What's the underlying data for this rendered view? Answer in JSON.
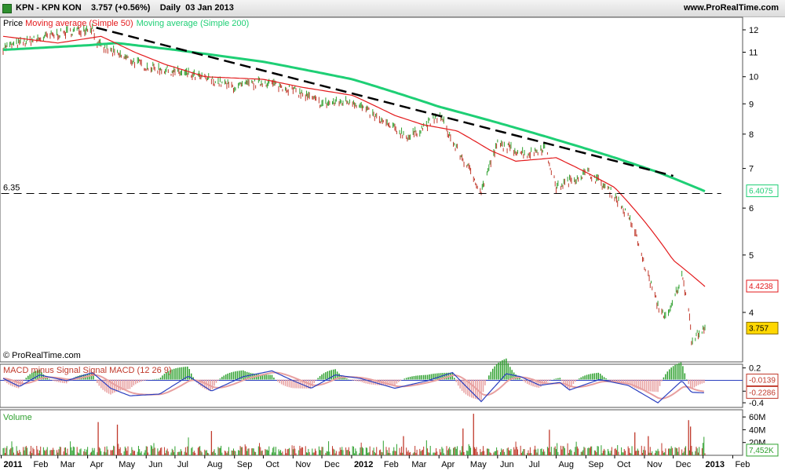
{
  "header": {
    "title": "KPN - KPN KON    3.757 (+0.56%)    Daily  03 Jan 2013",
    "site": "www.ProRealTime.com",
    "copyright": "© ProRealTime.com"
  },
  "colors": {
    "price_up": "#2ea02e",
    "price_down": "#c0392b",
    "ma50": "#e31a1c",
    "ma200": "#1ecf75",
    "trend": "#000000",
    "macd": "#2b3fbf",
    "signal": "#e8a0a0"
  },
  "chart_data": [
    {
      "type": "line",
      "panel": "price",
      "legend": [
        "Price",
        "Moving average (Simple 50)",
        "Moving average (Simple 200)"
      ],
      "x_ticks": [
        "2011",
        "Feb",
        "Mar",
        "Apr",
        "May",
        "Jun",
        "Jul",
        "Aug",
        "Sep",
        "Oct",
        "Nov",
        "Dec",
        "2012",
        "Feb",
        "Mar",
        "Apr",
        "May",
        "Jun",
        "Jul",
        "Aug",
        "Sep",
        "Oct",
        "Nov",
        "Dec",
        "2013",
        "Feb"
      ],
      "y_scale": "log",
      "y_ticks": [
        4,
        5,
        6,
        7,
        8,
        9,
        10,
        11,
        12
      ],
      "ylim": [
        3.3,
        12.6
      ],
      "price_path": [
        [
          "2011-01-03",
          11.2
        ],
        [
          "2011-02-01",
          11.5
        ],
        [
          "2011-03-01",
          11.8
        ],
        [
          "2011-04-06",
          12.1
        ],
        [
          "2011-04-12",
          11.3
        ],
        [
          "2011-05-02",
          10.9
        ],
        [
          "2011-06-01",
          10.4
        ],
        [
          "2011-07-01",
          10.2
        ],
        [
          "2011-08-05",
          9.9
        ],
        [
          "2011-09-01",
          9.6
        ],
        [
          "2011-10-03",
          9.8
        ],
        [
          "2011-11-01",
          9.5
        ],
        [
          "2011-12-01",
          9.0
        ],
        [
          "2012-01-02",
          9.1
        ],
        [
          "2012-02-01",
          8.4
        ],
        [
          "2012-03-01",
          7.9
        ],
        [
          "2012-04-02",
          8.6
        ],
        [
          "2012-04-16",
          7.7
        ],
        [
          "2012-05-15",
          6.4
        ],
        [
          "2012-06-01",
          7.7
        ],
        [
          "2012-07-02",
          7.4
        ],
        [
          "2012-07-20",
          7.6
        ],
        [
          "2012-08-01",
          6.5
        ],
        [
          "2012-09-03",
          6.9
        ],
        [
          "2012-10-01",
          6.3
        ],
        [
          "2012-10-20",
          5.6
        ],
        [
          "2012-11-01",
          4.8
        ],
        [
          "2012-11-15",
          4.1
        ],
        [
          "2012-11-25",
          3.9
        ],
        [
          "2012-12-10",
          4.6
        ],
        [
          "2012-12-17",
          4.1
        ],
        [
          "2012-12-20",
          3.6
        ],
        [
          "2013-01-03",
          3.757
        ]
      ],
      "ma50": [
        [
          "2011-01-03",
          11.7
        ],
        [
          "2011-03-01",
          11.4
        ],
        [
          "2011-04-15",
          11.7
        ],
        [
          "2011-05-20",
          11.0
        ],
        [
          "2011-06-20",
          10.5
        ],
        [
          "2011-08-01",
          10.0
        ],
        [
          "2011-10-01",
          9.9
        ],
        [
          "2011-11-10",
          9.6
        ],
        [
          "2012-01-02",
          9.3
        ],
        [
          "2012-02-15",
          8.6
        ],
        [
          "2012-03-15",
          8.3
        ],
        [
          "2012-04-20",
          8.1
        ],
        [
          "2012-05-25",
          7.5
        ],
        [
          "2012-06-20",
          7.2
        ],
        [
          "2012-08-01",
          7.3
        ],
        [
          "2012-09-01",
          6.9
        ],
        [
          "2012-10-01",
          6.5
        ],
        [
          "2012-11-01",
          5.7
        ],
        [
          "2012-12-01",
          4.9
        ],
        [
          "2013-01-03",
          4.4238
        ]
      ],
      "ma200": [
        [
          "2011-01-03",
          11.1
        ],
        [
          "2011-04-01",
          11.3
        ],
        [
          "2011-05-01",
          11.4
        ],
        [
          "2011-07-01",
          11.1
        ],
        [
          "2011-10-01",
          10.6
        ],
        [
          "2012-01-02",
          9.9
        ],
        [
          "2012-04-01",
          8.9
        ],
        [
          "2012-07-01",
          8.1
        ],
        [
          "2012-10-01",
          7.3
        ],
        [
          "2012-11-15",
          6.9
        ],
        [
          "2013-01-03",
          6.4075
        ]
      ],
      "trend_lines": [
        {
          "style": "dashed",
          "points": [
            [
              "2011-04-10",
              12.1
            ],
            [
              "2012-12-01",
              6.8
            ]
          ]
        },
        {
          "style": "dashed",
          "points": [
            [
              "2011-01-01",
              6.35
            ],
            [
              "2013-01-20",
              6.35
            ]
          ],
          "label": "6.35"
        }
      ],
      "value_tags": [
        {
          "label": "6.4075",
          "value": 6.4075,
          "color": "#1ecf75"
        },
        {
          "label": "4.4238",
          "value": 4.4238,
          "color": "#e31a1c"
        },
        {
          "label": "3.757",
          "value": 3.757,
          "color": "#e8c000"
        }
      ]
    },
    {
      "type": "line",
      "panel": "macd",
      "title": "MACD minus Signal Signal MACD (12 26 9)",
      "y_ticks": [
        0.2,
        -0.2,
        -0.4
      ],
      "ylim": [
        -0.48,
        0.25
      ],
      "macd_path": [
        [
          "2011-01-03",
          0.02
        ],
        [
          "2011-01-20",
          -0.12
        ],
        [
          "2011-02-10",
          0.08
        ],
        [
          "2011-03-10",
          -0.02
        ],
        [
          "2011-04-06",
          0.12
        ],
        [
          "2011-04-25",
          -0.15
        ],
        [
          "2011-05-15",
          -0.28
        ],
        [
          "2011-06-15",
          -0.25
        ],
        [
          "2011-07-15",
          0.06
        ],
        [
          "2011-08-08",
          -0.2
        ],
        [
          "2011-09-10",
          0.05
        ],
        [
          "2011-10-10",
          0.15
        ],
        [
          "2011-11-01",
          -0.02
        ],
        [
          "2011-11-20",
          -0.15
        ],
        [
          "2011-12-15",
          0.08
        ],
        [
          "2012-01-10",
          0.02
        ],
        [
          "2012-02-15",
          -0.15
        ],
        [
          "2012-03-20",
          -0.02
        ],
        [
          "2012-04-15",
          0.12
        ],
        [
          "2012-05-15",
          -0.38
        ],
        [
          "2012-06-10",
          0.1
        ],
        [
          "2012-06-25",
          0.05
        ],
        [
          "2012-07-15",
          -0.1
        ],
        [
          "2012-08-05",
          -0.05
        ],
        [
          "2012-08-15",
          -0.18
        ],
        [
          "2012-09-15",
          0.0
        ],
        [
          "2012-10-15",
          -0.1
        ],
        [
          "2012-11-15",
          -0.4
        ],
        [
          "2012-12-10",
          -0.02
        ],
        [
          "2012-12-20",
          -0.22
        ],
        [
          "2013-01-03",
          -0.2286
        ]
      ],
      "value_tags": [
        {
          "label": "-0.0139",
          "value": -0.0139,
          "color": "#c0392b"
        },
        {
          "label": "-0.2286",
          "value": -0.2286,
          "color": "#c0392b"
        }
      ]
    },
    {
      "type": "bar",
      "panel": "volume",
      "title": "Volume",
      "y_ticks": [
        "60M",
        "40M",
        "20M"
      ],
      "ylim": [
        0,
        70
      ],
      "spikes": [
        [
          "2011-04-12",
          52
        ],
        [
          "2011-05-02",
          48
        ],
        [
          "2011-08-08",
          38
        ],
        [
          "2012-02-24",
          30
        ],
        [
          "2012-04-26",
          42
        ],
        [
          "2012-05-07",
          65
        ],
        [
          "2012-07-25",
          40
        ],
        [
          "2012-10-22",
          36
        ],
        [
          "2012-11-05",
          30
        ],
        [
          "2012-12-17",
          55
        ],
        [
          "2012-12-19",
          45
        ]
      ],
      "value_tags": [
        {
          "label": "7,452K",
          "value": 7.452,
          "color": "#2ea02e"
        }
      ]
    }
  ]
}
